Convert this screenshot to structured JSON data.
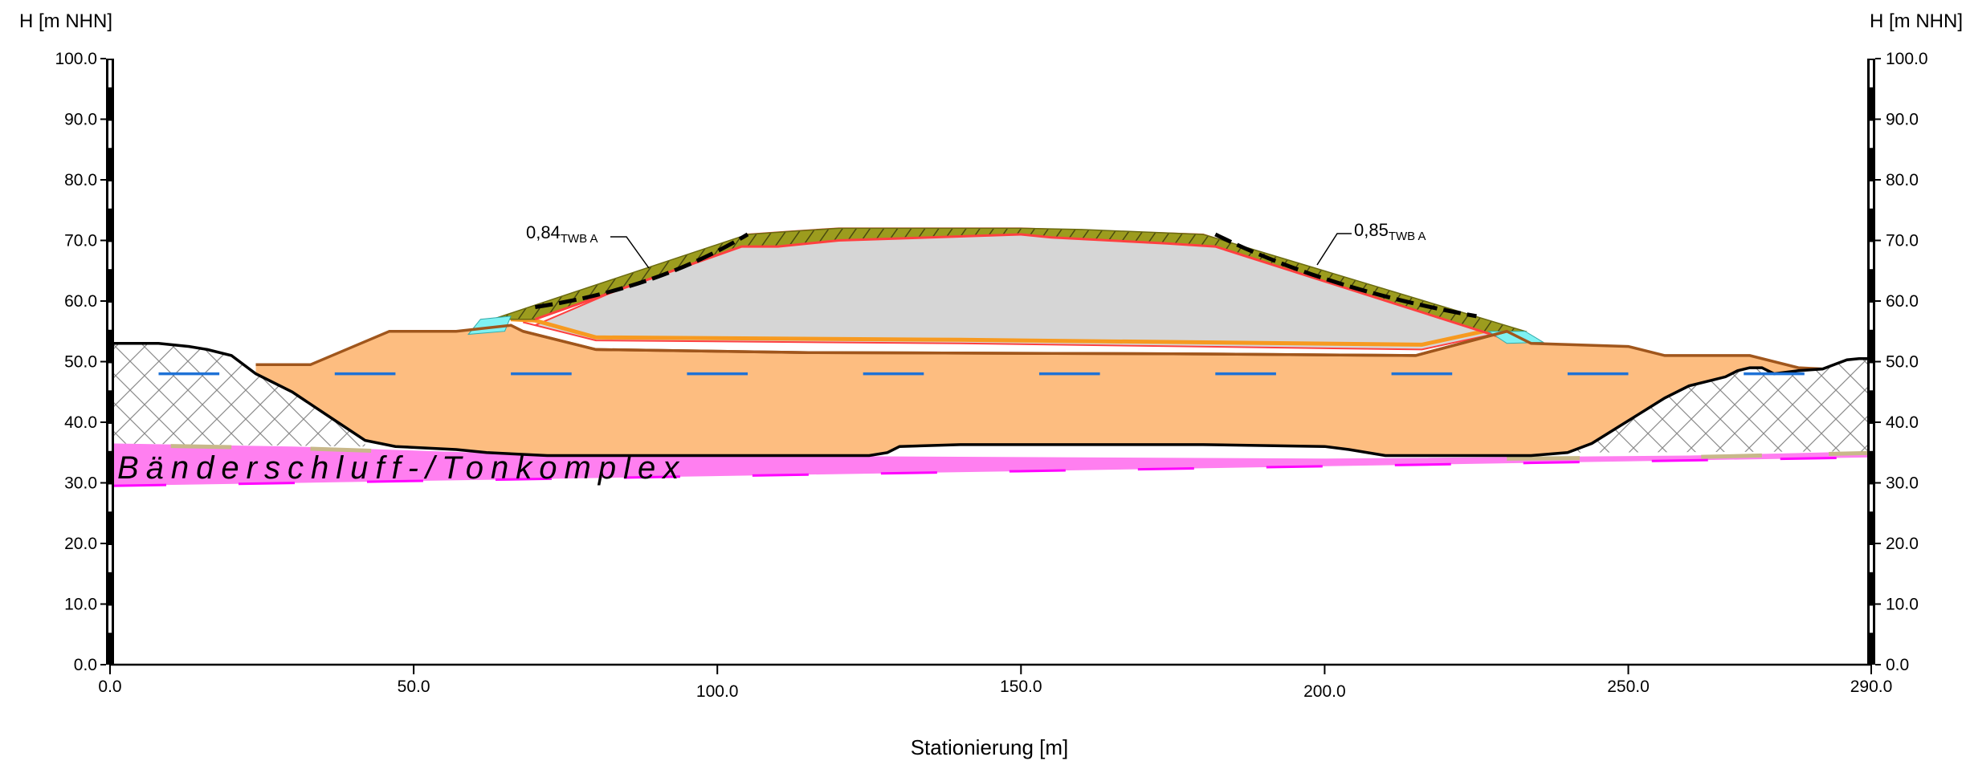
{
  "axes": {
    "y_title_left": "H [m NHN]",
    "y_title_right": "H [m NHN]",
    "x_title": "Stationierung [m]",
    "y_ticks": [
      "0.0",
      "10.0",
      "20.0",
      "30.0",
      "40.0",
      "50.0",
      "60.0",
      "70.0",
      "80.0",
      "90.0",
      "100.0"
    ],
    "x_ticks": [
      "0.0",
      "50.0",
      "100.0",
      "150.0",
      "200.0",
      "250.0",
      "290.0"
    ]
  },
  "labels": {
    "layer": "Bänderschluff-/Tonkomplex",
    "fos_left_value": "0,84",
    "fos_left_sub": "TWB A",
    "fos_right_value": "0,85",
    "fos_right_sub": "TWB A"
  },
  "colors": {
    "fill_orange": "#fdbd80",
    "layer_magenta": "#ff7ff0",
    "waste_grey": "#d6d6d6",
    "cover_olive": "#9c9c1e",
    "water_blue": "#1f72d6",
    "seal_cyan": "#7ff2f2",
    "outline_brown": "#a0561c",
    "line_orange": "#f79a20",
    "line_magenta": "#ff00ff",
    "line_red": "#ff4040"
  },
  "chart_data": {
    "type": "cross-section",
    "xlim": [
      0,
      290
    ],
    "ylim": [
      0,
      100
    ],
    "terrain": [
      [
        0,
        53
      ],
      [
        8,
        53
      ],
      [
        13,
        52.5
      ],
      [
        16,
        52
      ],
      [
        20,
        51
      ],
      [
        24,
        48
      ],
      [
        30,
        45
      ],
      [
        36,
        41
      ],
      [
        42,
        37
      ],
      [
        47,
        36
      ],
      [
        57,
        35.5
      ],
      [
        62,
        35
      ],
      [
        72,
        34.5
      ],
      [
        125,
        34.5
      ],
      [
        128,
        35
      ],
      [
        130,
        36
      ],
      [
        140,
        36.3
      ],
      [
        180,
        36.3
      ],
      [
        200,
        36
      ],
      [
        204,
        35.5
      ],
      [
        210,
        34.5
      ],
      [
        234,
        34.5
      ],
      [
        240,
        35
      ],
      [
        244,
        36.5
      ],
      [
        248,
        39
      ],
      [
        252,
        41.5
      ],
      [
        256,
        44
      ],
      [
        260,
        46
      ],
      [
        264,
        47
      ],
      [
        266,
        47.5
      ],
      [
        268,
        48.5
      ],
      [
        270,
        49
      ],
      [
        272,
        49
      ],
      [
        274,
        48
      ],
      [
        278,
        48.5
      ],
      [
        282,
        48.8
      ],
      [
        286,
        50.3
      ],
      [
        288,
        50.5
      ],
      [
        290,
        50.5
      ]
    ],
    "fill_top": [
      [
        24,
        49.5
      ],
      [
        33,
        49.5
      ],
      [
        46,
        55
      ],
      [
        57,
        55
      ],
      [
        66,
        56
      ],
      [
        68,
        55
      ],
      [
        80,
        52
      ],
      [
        115,
        51.5
      ],
      [
        175,
        51.3
      ],
      [
        215,
        51
      ],
      [
        230,
        55
      ],
      [
        234,
        53
      ],
      [
        250,
        52.5
      ],
      [
        256,
        51
      ],
      [
        270,
        51
      ],
      [
        278,
        49
      ],
      [
        282,
        48.8
      ]
    ],
    "waste_body": [
      [
        70,
        56
      ],
      [
        105,
        71
      ],
      [
        112,
        71.5
      ],
      [
        120,
        72
      ],
      [
        150,
        72
      ],
      [
        180,
        71
      ],
      [
        230,
        55
      ],
      [
        216,
        52
      ],
      [
        140,
        53
      ],
      [
        80,
        53.5
      ],
      [
        68,
        56.5
      ]
    ],
    "cover_layer": [
      [
        63,
        57
      ],
      [
        105,
        71
      ],
      [
        112,
        71.5
      ],
      [
        120,
        72
      ],
      [
        150,
        72
      ],
      [
        160,
        71.8
      ],
      [
        180,
        71
      ],
      [
        233,
        55
      ],
      [
        229,
        54
      ],
      [
        182,
        69
      ],
      [
        174,
        69.5
      ],
      [
        155,
        70.5
      ],
      [
        150,
        71
      ],
      [
        120,
        70
      ],
      [
        110,
        69
      ],
      [
        104,
        69
      ],
      [
        70,
        57
      ]
    ],
    "layer_top": [
      [
        0,
        36.5
      ],
      [
        30,
        36
      ],
      [
        60,
        35
      ],
      [
        100,
        34.5
      ],
      [
        200,
        34
      ],
      [
        260,
        34.5
      ],
      [
        290,
        35.2
      ]
    ],
    "layer_bottom": [
      [
        0,
        29.5
      ],
      [
        290,
        34.2
      ]
    ],
    "water_level": 48,
    "fos_left": {
      "value": "0,84",
      "label": "TWB A"
    },
    "fos_right": {
      "value": "0,85",
      "label": "TWB A"
    }
  }
}
